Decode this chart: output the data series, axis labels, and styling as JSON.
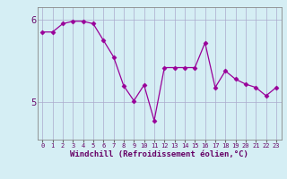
{
  "x": [
    0,
    1,
    2,
    3,
    4,
    5,
    6,
    7,
    8,
    9,
    10,
    11,
    12,
    13,
    14,
    15,
    16,
    17,
    18,
    19,
    20,
    21,
    22,
    23
  ],
  "y": [
    5.85,
    5.85,
    5.95,
    5.98,
    5.98,
    5.95,
    5.75,
    5.55,
    5.2,
    5.02,
    5.21,
    4.78,
    5.42,
    5.42,
    5.42,
    5.42,
    5.72,
    5.18,
    5.38,
    5.28,
    5.22,
    5.18,
    5.08,
    5.18
  ],
  "line_color": "#990099",
  "marker": "D",
  "marker_size": 2.5,
  "background_color": "#d5eef4",
  "grid_color": "#aaaacc",
  "xlabel": "Windchill (Refroidissement éolien,°C)",
  "xlabel_color": "#660066",
  "tick_color": "#660066",
  "ylim": [
    4.55,
    6.15
  ],
  "yticks": [
    5,
    6
  ],
  "xlim": [
    -0.5,
    23.5
  ],
  "figsize": [
    3.2,
    2.0
  ],
  "dpi": 100
}
